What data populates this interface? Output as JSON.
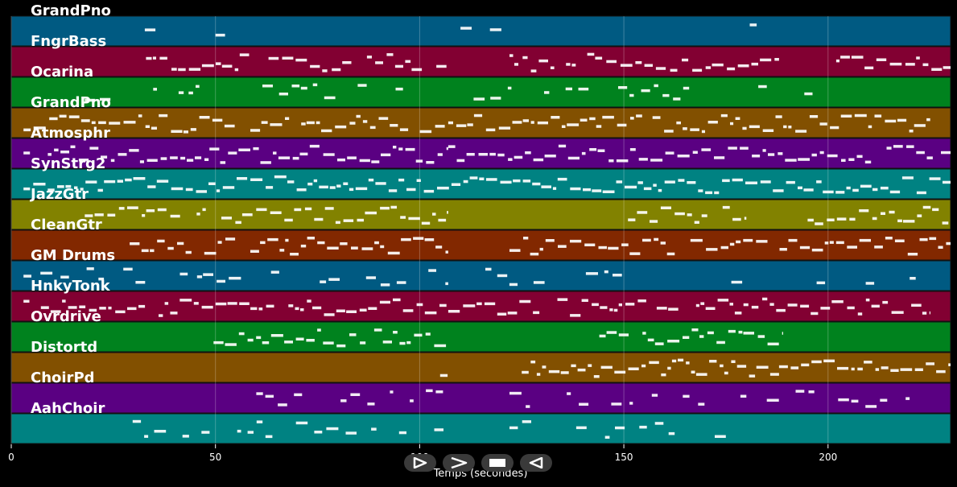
{
  "chart_data": {
    "type": "piano-roll",
    "xlabel": "Temps (secondes)",
    "xlim": [
      0,
      230
    ],
    "xticks": [
      0,
      50,
      100,
      150,
      200
    ],
    "grid": true,
    "tracks": [
      {
        "name": "GrandPno",
        "color": "#005a82",
        "density": 0.25,
        "segments": [
          [
            20,
            36
          ],
          [
            50,
            60
          ],
          [
            75,
            90
          ],
          [
            110,
            140
          ],
          [
            152,
            160
          ],
          [
            175,
            186
          ],
          [
            207,
            217
          ]
        ]
      },
      {
        "name": "FngrBass",
        "color": "#820032",
        "density": 0.9,
        "segments": [
          [
            33,
            107
          ],
          [
            122,
            188
          ],
          [
            202,
            230
          ]
        ]
      },
      {
        "name": "Ocarina",
        "color": "#00821e",
        "density": 0.6,
        "segments": [
          [
            18,
            107
          ],
          [
            111,
            185
          ],
          [
            190,
            216
          ]
        ]
      },
      {
        "name": "GrandPno",
        "color": "#825000",
        "density": 0.95,
        "segments": [
          [
            3,
            107
          ],
          [
            107,
            225
          ]
        ]
      },
      {
        "name": "Atmosphr",
        "color": "#5a0082",
        "density": 0.95,
        "segments": [
          [
            3,
            107
          ],
          [
            107,
            230
          ]
        ]
      },
      {
        "name": "SynStrg2",
        "color": "#008282",
        "density": 1.0,
        "segments": [
          [
            3,
            230
          ]
        ]
      },
      {
        "name": "JazzGtr",
        "color": "#828200",
        "density": 0.95,
        "segments": [
          [
            18,
            107
          ],
          [
            151,
            180
          ],
          [
            195,
            230
          ]
        ]
      },
      {
        "name": "CleanGtr",
        "color": "#822800",
        "density": 0.95,
        "segments": [
          [
            29,
            107
          ],
          [
            122,
            230
          ]
        ]
      },
      {
        "name": "GM Drums",
        "color": "#005a82",
        "density": 0.5,
        "segments": [
          [
            3,
            107
          ],
          [
            107,
            222
          ]
        ]
      },
      {
        "name": "HnkyTonk",
        "color": "#820032",
        "density": 0.95,
        "segments": [
          [
            3,
            107
          ],
          [
            107,
            225
          ]
        ]
      },
      {
        "name": "Ovrdrive",
        "color": "#00821e",
        "density": 0.95,
        "segments": [
          [
            48,
            107
          ],
          [
            144,
            189
          ]
        ]
      },
      {
        "name": "Distortd",
        "color": "#825000",
        "density": 1.0,
        "segments": [
          [
            105,
            107
          ],
          [
            125,
            188
          ],
          [
            188,
            230
          ]
        ]
      },
      {
        "name": "ChoirPd",
        "color": "#5a0082",
        "density": 0.55,
        "segments": [
          [
            60,
            107
          ],
          [
            122,
            180
          ],
          [
            185,
            223
          ]
        ]
      },
      {
        "name": "AahChoir",
        "color": "#008282",
        "density": 0.6,
        "segments": [
          [
            18,
            107
          ],
          [
            122,
            180
          ]
        ]
      }
    ]
  },
  "controls": [
    {
      "name": "play-button",
      "icon": "play-icon"
    },
    {
      "name": "forward-button",
      "icon": "fast-forward-icon"
    },
    {
      "name": "stop-button",
      "icon": "stop-icon"
    },
    {
      "name": "rewind-button",
      "icon": "rewind-icon"
    }
  ]
}
